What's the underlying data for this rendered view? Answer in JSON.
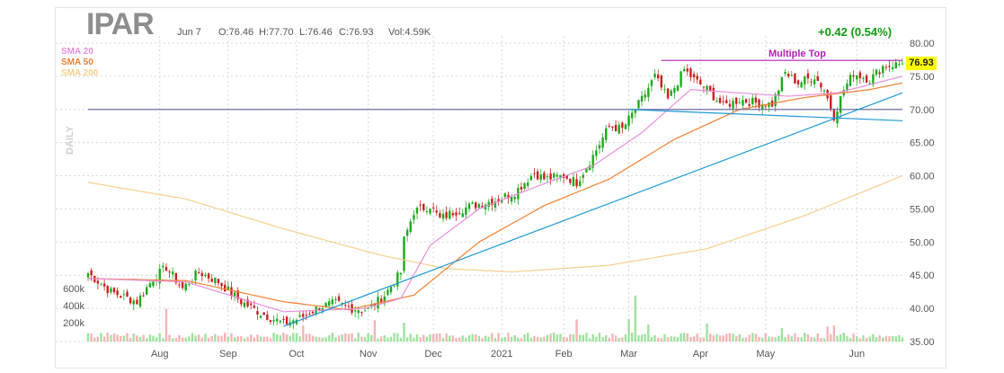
{
  "header": {
    "ticker": "IPAR",
    "date": "Jun 7",
    "open": "O:76.46",
    "high": "H:77.70",
    "low": "L:76.46",
    "close": "C:76.93",
    "volume": "Vol:4.59K",
    "change": "+0.42 (0.54%)",
    "period": "DAILY",
    "last_price": "76.93"
  },
  "legend": [
    {
      "label": "SMA 20",
      "color": "#e98fdc"
    },
    {
      "label": "SMA 50",
      "color": "#f2802f"
    },
    {
      "label": "SMA 200",
      "color": "#f6cf8e"
    }
  ],
  "colors": {
    "up": "#1daa1d",
    "down": "#cc1f1f",
    "vol_up": "#9ee39e",
    "vol_down": "#f5b5b5",
    "trendline": "#1c9ad6",
    "horizontal_line": "#6f6fa8",
    "pattern": "#b01fb5",
    "grid": "#d6d6d6"
  },
  "chart_data": {
    "type": "candlestick",
    "ylim": [
      35,
      80
    ],
    "y_ticks": [
      "80.00",
      "75.00",
      "70.00",
      "65.00",
      "60.00",
      "55.00",
      "50.00",
      "45.00",
      "40.00",
      "35.00"
    ],
    "x_labels": [
      "Aug",
      "Sep",
      "Oct",
      "Nov",
      "Dec",
      "2021",
      "Feb",
      "Mar",
      "Apr",
      "May",
      "Jun"
    ],
    "volume_ticks": [
      "600k",
      "400k",
      "200k"
    ],
    "annotation": "Multiple Top",
    "anchors": [
      {
        "t": 0,
        "c": 45.3
      },
      {
        "t": 7,
        "c": 42.5
      },
      {
        "t": 15,
        "c": 41.0
      },
      {
        "t": 20,
        "c": 44.5
      },
      {
        "t": 24,
        "c": 46.2
      },
      {
        "t": 29,
        "c": 43.0
      },
      {
        "t": 34,
        "c": 45.5
      },
      {
        "t": 40,
        "c": 44.0
      },
      {
        "t": 47,
        "c": 41.0
      },
      {
        "t": 53,
        "c": 39.3
      },
      {
        "t": 60,
        "c": 37.7
      },
      {
        "t": 65,
        "c": 38.5
      },
      {
        "t": 71,
        "c": 40.2
      },
      {
        "t": 76,
        "c": 40.8
      },
      {
        "t": 81,
        "c": 40.0
      },
      {
        "t": 86,
        "c": 39.8
      },
      {
        "t": 91,
        "c": 42.0
      },
      {
        "t": 96,
        "c": 45.4
      },
      {
        "t": 97,
        "c": 50.3
      },
      {
        "t": 100,
        "c": 54.6
      },
      {
        "t": 105,
        "c": 55.5
      },
      {
        "t": 108,
        "c": 53.5
      },
      {
        "t": 112,
        "c": 54.5
      },
      {
        "t": 118,
        "c": 55.5
      },
      {
        "t": 125,
        "c": 56.3
      },
      {
        "t": 131,
        "c": 57.5
      },
      {
        "t": 137,
        "c": 60.5
      },
      {
        "t": 140,
        "c": 59.5
      },
      {
        "t": 146,
        "c": 60.0
      },
      {
        "t": 150,
        "c": 59.0
      },
      {
        "t": 155,
        "c": 63.0
      },
      {
        "t": 160,
        "c": 67.5
      },
      {
        "t": 164,
        "c": 67.0
      },
      {
        "t": 170,
        "c": 71.5
      },
      {
        "t": 174,
        "c": 75.0
      },
      {
        "t": 178,
        "c": 71.5
      },
      {
        "t": 183,
        "c": 76.0
      },
      {
        "t": 186,
        "c": 74.5
      },
      {
        "t": 190,
        "c": 73.0
      },
      {
        "t": 195,
        "c": 70.5
      },
      {
        "t": 200,
        "c": 71.5
      },
      {
        "t": 205,
        "c": 71.0
      },
      {
        "t": 210,
        "c": 70.8
      },
      {
        "t": 214,
        "c": 75.5
      },
      {
        "t": 218,
        "c": 74.0
      },
      {
        "t": 223,
        "c": 75.0
      },
      {
        "t": 226,
        "c": 73.0
      },
      {
        "t": 229,
        "c": 69.0
      },
      {
        "t": 232,
        "c": 73.0
      },
      {
        "t": 235,
        "c": 75.5
      },
      {
        "t": 240,
        "c": 74.5
      },
      {
        "t": 244,
        "c": 76.5
      },
      {
        "t": 250,
        "c": 76.93
      }
    ],
    "sma_20": [
      {
        "t": 0,
        "c": 44.5
      },
      {
        "t": 30,
        "c": 44.0
      },
      {
        "t": 60,
        "c": 39.5
      },
      {
        "t": 85,
        "c": 40.0
      },
      {
        "t": 96,
        "c": 41.5
      },
      {
        "t": 105,
        "c": 49.5
      },
      {
        "t": 120,
        "c": 55.0
      },
      {
        "t": 140,
        "c": 58.8
      },
      {
        "t": 155,
        "c": 61.5
      },
      {
        "t": 170,
        "c": 66.5
      },
      {
        "t": 185,
        "c": 73.0
      },
      {
        "t": 200,
        "c": 72.5
      },
      {
        "t": 215,
        "c": 72.0
      },
      {
        "t": 230,
        "c": 72.5
      },
      {
        "t": 250,
        "c": 75.0
      }
    ],
    "sma_50": [
      {
        "t": 0,
        "c": 44.5
      },
      {
        "t": 30,
        "c": 44.2
      },
      {
        "t": 60,
        "c": 41.0
      },
      {
        "t": 80,
        "c": 39.8
      },
      {
        "t": 100,
        "c": 42.0
      },
      {
        "t": 120,
        "c": 50.0
      },
      {
        "t": 140,
        "c": 55.5
      },
      {
        "t": 160,
        "c": 59.5
      },
      {
        "t": 180,
        "c": 65.5
      },
      {
        "t": 200,
        "c": 70.0
      },
      {
        "t": 220,
        "c": 71.8
      },
      {
        "t": 240,
        "c": 73.0
      },
      {
        "t": 250,
        "c": 74.0
      }
    ],
    "sma_200": [
      {
        "t": 0,
        "c": 59.0
      },
      {
        "t": 30,
        "c": 56.5
      },
      {
        "t": 60,
        "c": 52.0
      },
      {
        "t": 90,
        "c": 48.0
      },
      {
        "t": 110,
        "c": 46.0
      },
      {
        "t": 130,
        "c": 45.5
      },
      {
        "t": 160,
        "c": 46.5
      },
      {
        "t": 190,
        "c": 49.0
      },
      {
        "t": 220,
        "c": 54.0
      },
      {
        "t": 250,
        "c": 60.0
      }
    ],
    "horizontal_line": 70.0,
    "multiple_top_line": {
      "t0": 176,
      "t1": 250,
      "price": 77.4
    },
    "trendline_support": {
      "t0": 60,
      "p0": 37.3,
      "t1": 250,
      "p1": 72.5
    },
    "trendline_resistance": {
      "t0": 166,
      "p0": 70.0,
      "t1": 250,
      "p1": 68.3
    },
    "volume_max": 700000
  }
}
